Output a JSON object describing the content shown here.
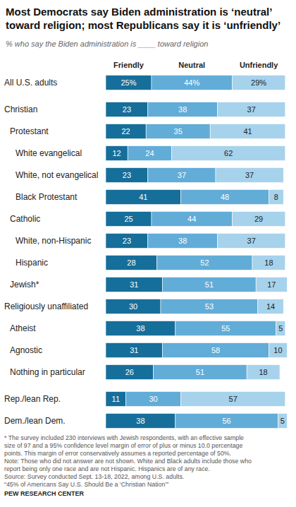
{
  "chart_data": {
    "type": "bar",
    "orientation": "horizontal",
    "stacked": true,
    "data_labels": true,
    "tick_labels": "y",
    "grid": false,
    "legend": "top",
    "title": "Most Democrats say Biden administration is ‘neutral’\ntoward religion; most Republicans say it is ‘unfriendly’",
    "subtitle": "% who say the Biden administration is ____ toward religion",
    "categories": [
      "All U.S. adults",
      "Christian",
      "Protestant",
      "White evangelical",
      "White, not evangelical",
      "Black Protestant",
      "Catholic",
      "White, non-Hispanic",
      "Hispanic",
      "Jewish*",
      "Religiously unaffiliated",
      "Atheist",
      "Agnostic",
      "Nothing in particular",
      "Rep./lean Rep.",
      "Dem./lean Dem."
    ],
    "xlim": [
      0,
      100
    ],
    "series": [
      {
        "name": "Friendly",
        "color": "#166e9a",
        "values": [
          25,
          23,
          22,
          12,
          23,
          41,
          25,
          23,
          28,
          31,
          30,
          38,
          31,
          26,
          11,
          38
        ],
        "value_labels": [
          "25%",
          "23",
          "22",
          "12",
          "23",
          "41",
          "25",
          "23",
          "28",
          "31",
          "30",
          "38",
          "31",
          "26",
          "11",
          "38"
        ]
      },
      {
        "name": "Neutral",
        "color": "#62acd8",
        "values": [
          44,
          38,
          35,
          24,
          37,
          48,
          44,
          38,
          52,
          51,
          53,
          55,
          58,
          51,
          30,
          56
        ],
        "value_labels": [
          "44%",
          "38",
          "35",
          "24",
          "37",
          "48",
          "44",
          "38",
          "52",
          "51",
          "53",
          "55",
          "58",
          "51",
          "30",
          "56"
        ]
      },
      {
        "name": "Unfriendly",
        "color": "#a7d2ec",
        "values": [
          29,
          37,
          41,
          62,
          37,
          8,
          29,
          37,
          18,
          17,
          14,
          5,
          10,
          18,
          57,
          5
        ],
        "value_labels": [
          "29%",
          "37",
          "41",
          "62",
          "37",
          "8",
          "29",
          "37",
          "18",
          "17",
          "14",
          "5",
          "10",
          "18",
          "57",
          "5"
        ]
      }
    ],
    "footnote": "* The survey included 230 interviews with Jewish respondents, with an effective sample\nsize of 97 and a 95% confidence level margin of error of plus or minus 10.0 percentage\npoints. This margin of error conservatively assumes a reported percentage of 50%.",
    "note": "Note: Those who did not answer are not shown. White and Black adults include those who\nreport being only one race and are not Hispanic. Hispanics are of any race.",
    "source": "Source: Survey conducted Sept. 13-18, 2022, among U.S. adults.\n“45% of Americans Say U.S. Should Be a ‘Christian Nation’”",
    "credit": "PEW RESEARCH CENTER"
  }
}
